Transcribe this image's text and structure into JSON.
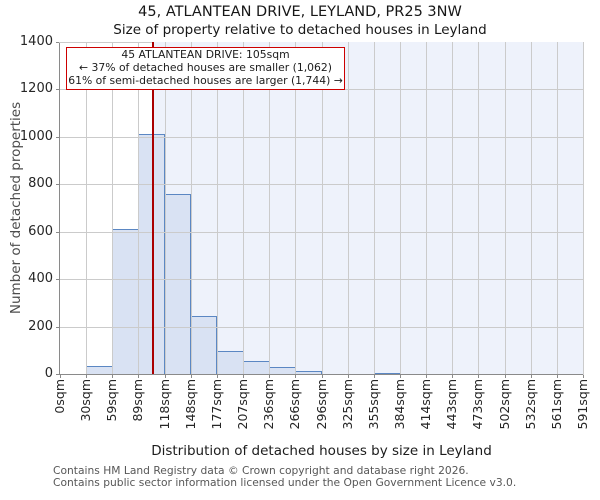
{
  "chart_data": {
    "type": "bar",
    "title": "45, ATLANTEAN DRIVE, LEYLAND, PR25 3NW",
    "subtitle": "Size of property relative to detached houses in Leyland",
    "xlabel": "Distribution of detached houses by size in Leyland",
    "ylabel": "Number of detached properties",
    "bin_edges_sqm": [
      0,
      30,
      59,
      89,
      118,
      148,
      177,
      207,
      236,
      266,
      296,
      325,
      355,
      384,
      414,
      443,
      473,
      502,
      532,
      561,
      591
    ],
    "xtick_labels": [
      "0sqm",
      "30sqm",
      "59sqm",
      "89sqm",
      "118sqm",
      "148sqm",
      "177sqm",
      "207sqm",
      "236sqm",
      "266sqm",
      "296sqm",
      "325sqm",
      "355sqm",
      "384sqm",
      "414sqm",
      "443sqm",
      "473sqm",
      "502sqm",
      "532sqm",
      "561sqm",
      "591sqm"
    ],
    "values": [
      0,
      35,
      610,
      1010,
      760,
      245,
      97,
      55,
      30,
      14,
      0,
      0,
      6,
      0,
      0,
      0,
      0,
      0,
      0,
      0
    ],
    "ylim": [
      0,
      1400
    ],
    "ytick_step": 200,
    "ytick_labels": [
      "0",
      "200",
      "400",
      "600",
      "800",
      "1000",
      "1200",
      "1400"
    ],
    "grid": true,
    "marker_value_sqm": 105,
    "annotation": {
      "line1": "45 ATLANTEAN DRIVE: 105sqm",
      "line2": "← 37% of detached houses are smaller (1,062)",
      "line3": "61% of semi-detached houses are larger (1,744) →"
    }
  },
  "footer": {
    "line1": "Contains HM Land Registry data © Crown copyright and database right 2026.",
    "line2": "Contains public sector information licensed under the Open Government Licence v3.0."
  },
  "colors": {
    "bar_fill": "#d9e2f3",
    "bar_border": "#5b87c3",
    "marker_line": "#aa0000",
    "annotation_border": "#cd0000",
    "shade_region": "#eef2fb",
    "gridline": "#cbcbcb",
    "spine": "#8a8a8a",
    "text": "#171717",
    "muted_text": "#575757"
  }
}
